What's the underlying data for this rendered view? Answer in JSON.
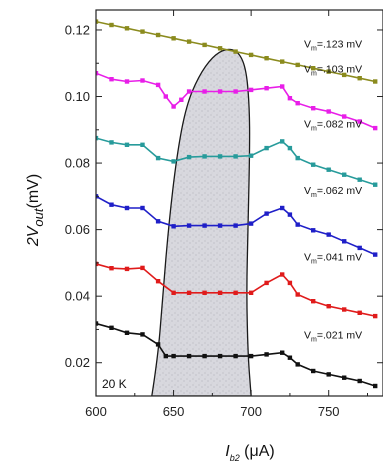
{
  "chart_data": {
    "type": "line",
    "title": "",
    "ylabel_main": "2V",
    "ylabel_sub": "out",
    "ylabel_unit": "(mV)",
    "xlabel_main": "I",
    "xlabel_sub": "b2",
    "xlabel_unit": " (μA)",
    "xlim": [
      600,
      785
    ],
    "ylim": [
      0.01,
      0.126
    ],
    "x_ticks": [
      600,
      650,
      700,
      750
    ],
    "x_tick_labels": [
      "600",
      "650",
      "700",
      "750"
    ],
    "y_ticks": [
      0.02,
      0.04,
      0.06,
      0.08,
      0.1,
      0.12
    ],
    "y_tick_labels": [
      "0.02",
      "0.04",
      "0.06",
      "0.08",
      "0.10",
      "0.12"
    ],
    "temperature_label": "20 K",
    "shaded_region_boundary": [
      [
        636,
        0.01
      ],
      [
        640,
        0.022
      ],
      [
        643,
        0.04
      ],
      [
        647,
        0.062
      ],
      [
        652,
        0.082
      ],
      [
        658,
        0.097
      ],
      [
        666,
        0.106
      ],
      [
        675,
        0.112
      ],
      [
        684,
        0.1145
      ],
      [
        692,
        0.1135
      ],
      [
        697,
        0.108
      ],
      [
        699,
        0.096
      ],
      [
        699,
        0.082
      ],
      [
        698,
        0.061
      ],
      [
        697,
        0.041
      ],
      [
        698,
        0.022
      ],
      [
        700,
        0.01
      ]
    ],
    "series": [
      {
        "color": "#8b8b1e",
        "annotation_prefix": "V",
        "annotation_sub": "m",
        "annotation_value": "=.123 mV",
        "points": [
          [
            600,
            0.1225
          ],
          [
            610,
            0.1215
          ],
          [
            620,
            0.1205
          ],
          [
            630,
            0.1195
          ],
          [
            640,
            0.1185
          ],
          [
            650,
            0.1175
          ],
          [
            660,
            0.1165
          ],
          [
            670,
            0.1155
          ],
          [
            680,
            0.1145
          ],
          [
            690,
            0.1135
          ],
          [
            700,
            0.1125
          ],
          [
            710,
            0.1115
          ],
          [
            720,
            0.1105
          ],
          [
            730,
            0.1095
          ],
          [
            740,
            0.1085
          ],
          [
            750,
            0.1075
          ],
          [
            760,
            0.1065
          ],
          [
            770,
            0.1055
          ],
          [
            780,
            0.1045
          ]
        ]
      },
      {
        "color": "#e81ee8",
        "annotation_prefix": "V",
        "annotation_sub": "m",
        "annotation_value": "=.103 mV",
        "points": [
          [
            600,
            0.107
          ],
          [
            610,
            0.1052
          ],
          [
            620,
            0.1045
          ],
          [
            630,
            0.1048
          ],
          [
            640,
            0.1035
          ],
          [
            645,
            0.1
          ],
          [
            650,
            0.097
          ],
          [
            655,
            0.099
          ],
          [
            660,
            0.1015
          ],
          [
            670,
            0.1015
          ],
          [
            680,
            0.1015
          ],
          [
            690,
            0.1015
          ],
          [
            700,
            0.102
          ],
          [
            710,
            0.1025
          ],
          [
            720,
            0.103
          ],
          [
            725,
            0.0995
          ],
          [
            730,
            0.098
          ],
          [
            740,
            0.0965
          ],
          [
            750,
            0.0955
          ],
          [
            760,
            0.094
          ],
          [
            770,
            0.0925
          ],
          [
            780,
            0.0905
          ]
        ]
      },
      {
        "color": "#279b9b",
        "annotation_prefix": "V",
        "annotation_sub": "m",
        "annotation_value": "=.082 mV",
        "points": [
          [
            600,
            0.0875
          ],
          [
            610,
            0.0862
          ],
          [
            620,
            0.0855
          ],
          [
            630,
            0.0855
          ],
          [
            640,
            0.0815
          ],
          [
            650,
            0.0805
          ],
          [
            660,
            0.0818
          ],
          [
            670,
            0.082
          ],
          [
            680,
            0.082
          ],
          [
            690,
            0.082
          ],
          [
            700,
            0.0822
          ],
          [
            710,
            0.0845
          ],
          [
            720,
            0.0865
          ],
          [
            725,
            0.0845
          ],
          [
            730,
            0.0815
          ],
          [
            740,
            0.0795
          ],
          [
            750,
            0.078
          ],
          [
            760,
            0.0765
          ],
          [
            770,
            0.075
          ],
          [
            780,
            0.0735
          ]
        ]
      },
      {
        "color": "#1f1fc8",
        "annotation_prefix": "V",
        "annotation_sub": "m",
        "annotation_value": "=.062 mV",
        "points": [
          [
            600,
            0.07
          ],
          [
            610,
            0.0675
          ],
          [
            620,
            0.0665
          ],
          [
            630,
            0.0665
          ],
          [
            640,
            0.0625
          ],
          [
            650,
            0.061
          ],
          [
            660,
            0.0612
          ],
          [
            670,
            0.0612
          ],
          [
            680,
            0.0612
          ],
          [
            690,
            0.0612
          ],
          [
            700,
            0.0618
          ],
          [
            710,
            0.0648
          ],
          [
            720,
            0.0665
          ],
          [
            725,
            0.0645
          ],
          [
            730,
            0.0615
          ],
          [
            740,
            0.0598
          ],
          [
            750,
            0.0585
          ],
          [
            760,
            0.0565
          ],
          [
            770,
            0.0545
          ],
          [
            780,
            0.0525
          ]
        ]
      },
      {
        "color": "#e01b1b",
        "annotation_prefix": "V",
        "annotation_sub": "m",
        "annotation_value": "=.041 mV",
        "points": [
          [
            600,
            0.0497
          ],
          [
            610,
            0.0484
          ],
          [
            620,
            0.0482
          ],
          [
            630,
            0.0485
          ],
          [
            640,
            0.0445
          ],
          [
            650,
            0.041
          ],
          [
            660,
            0.041
          ],
          [
            670,
            0.041
          ],
          [
            680,
            0.041
          ],
          [
            690,
            0.041
          ],
          [
            700,
            0.041
          ],
          [
            710,
            0.044
          ],
          [
            720,
            0.0465
          ],
          [
            725,
            0.044
          ],
          [
            730,
            0.0405
          ],
          [
            740,
            0.0385
          ],
          [
            750,
            0.037
          ],
          [
            760,
            0.036
          ],
          [
            770,
            0.035
          ],
          [
            780,
            0.034
          ]
        ]
      },
      {
        "color": "#111111",
        "annotation_prefix": "V",
        "annotation_sub": "m",
        "annotation_value": "=.021 mV",
        "points": [
          [
            600,
            0.0318
          ],
          [
            610,
            0.0305
          ],
          [
            620,
            0.029
          ],
          [
            630,
            0.0285
          ],
          [
            640,
            0.0255
          ],
          [
            645,
            0.022
          ],
          [
            650,
            0.022
          ],
          [
            660,
            0.022
          ],
          [
            670,
            0.022
          ],
          [
            680,
            0.022
          ],
          [
            690,
            0.022
          ],
          [
            700,
            0.022
          ],
          [
            710,
            0.0225
          ],
          [
            720,
            0.023
          ],
          [
            725,
            0.0215
          ],
          [
            730,
            0.0195
          ],
          [
            740,
            0.0175
          ],
          [
            750,
            0.0165
          ],
          [
            760,
            0.0155
          ],
          [
            770,
            0.0145
          ],
          [
            780,
            0.013
          ]
        ]
      }
    ]
  }
}
